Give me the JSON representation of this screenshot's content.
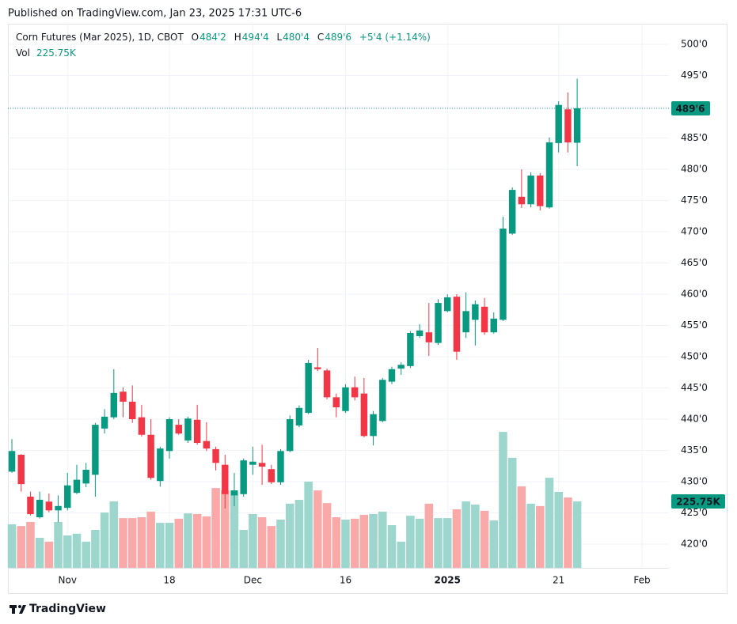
{
  "chart_data": {
    "type": "candlestick",
    "publish_note": "Published on TradingView.com, Jan 23, 2025 17:31 UTC-6",
    "title": "Corn Futures (Mar 2025), 1D, CBOT",
    "legend": {
      "open_label": "O",
      "open": "484'2",
      "high_label": "H",
      "high": "494'4",
      "low_label": "L",
      "low": "480'4",
      "close_label": "C",
      "close": "489'6",
      "change": "+5'4 (+1.14%)",
      "volume_label": "Vol",
      "volume": "225.75K"
    },
    "open": [
      431.6,
      434.3,
      427.6,
      424.3,
      426.8,
      425.4,
      425.8,
      428.2,
      429.7,
      431.1,
      438.5,
      440.3,
      444.4,
      442.8,
      440.3,
      437.5,
      430.1,
      434.9,
      439.1,
      436.6,
      439.9,
      436.5,
      435.2,
      432.7,
      427.8,
      428.0,
      432.7,
      433.0,
      432.0,
      429.9,
      434.9,
      439.0,
      441.0,
      448.3,
      447.8,
      443.5,
      441.3,
      445.1,
      444.1,
      437.3,
      439.7,
      446.0,
      448.1,
      448.5,
      453.3,
      453.9,
      452.2,
      457.3,
      459.6,
      453.9,
      455.9,
      458.0,
      453.9,
      455.9,
      469.7,
      475.6,
      474.4,
      479.0,
      473.9,
      484.2,
      489.6,
      484.25
    ],
    "high": [
      436.8,
      434.4,
      428.4,
      428.4,
      428.1,
      427.8,
      431.4,
      432.7,
      433.0,
      439.4,
      441.6,
      448.0,
      445.1,
      445.4,
      442.3,
      440.0,
      435.6,
      440.3,
      440.0,
      440.4,
      442.3,
      439.5,
      435.6,
      434.3,
      431.4,
      433.7,
      435.6,
      435.9,
      432.7,
      435.2,
      440.6,
      442.2,
      449.5,
      451.4,
      448.1,
      444.1,
      445.6,
      446.8,
      446.6,
      441.3,
      446.6,
      448.4,
      449.1,
      454.1,
      455.2,
      458.6,
      459.2,
      460.0,
      460.0,
      460.3,
      459.0,
      459.4,
      457.1,
      472.4,
      477.1,
      480.0,
      479.5,
      479.4,
      485.1,
      490.9,
      492.3,
      494.5
    ],
    "low": [
      431.4,
      428.4,
      424.6,
      424.1,
      425.1,
      423.5,
      425.4,
      428.0,
      429.1,
      427.6,
      437.7,
      440.0,
      440.3,
      439.4,
      437.2,
      430.3,
      429.2,
      433.7,
      437.5,
      436.2,
      435.9,
      434.9,
      431.8,
      425.7,
      426.1,
      427.6,
      431.1,
      429.5,
      429.6,
      429.5,
      434.7,
      438.7,
      440.8,
      447.7,
      443.2,
      440.3,
      441.0,
      443.0,
      437.1,
      435.8,
      439.5,
      445.6,
      447.1,
      448.2,
      453.0,
      450.1,
      451.9,
      457.1,
      449.5,
      453.0,
      451.8,
      453.5,
      453.7,
      455.7,
      469.5,
      473.8,
      473.9,
      473.4,
      473.7,
      482.7,
      482.7,
      480.5
    ],
    "close": [
      434.9,
      429.6,
      424.8,
      427.1,
      425.4,
      426.1,
      429.4,
      430.3,
      431.9,
      439.1,
      440.4,
      444.2,
      442.8,
      440.0,
      437.5,
      430.6,
      435.3,
      440.0,
      437.7,
      440.1,
      436.2,
      435.3,
      433.0,
      428.0,
      428.6,
      433.4,
      433.2,
      432.4,
      429.9,
      434.9,
      440.0,
      441.8,
      449.0,
      448.0,
      443.5,
      441.9,
      445.1,
      443.5,
      437.3,
      440.8,
      446.3,
      448.0,
      448.7,
      453.8,
      454.2,
      452.3,
      458.6,
      459.5,
      450.8,
      457.3,
      458.4,
      453.9,
      456.1,
      470.5,
      476.7,
      474.4,
      479.0,
      474.1,
      484.3,
      490.3,
      484.3,
      489.75
    ],
    "volume": [
      148,
      142,
      156,
      102,
      89,
      156,
      110,
      116,
      89,
      129,
      188,
      226,
      169,
      169,
      172,
      191,
      153,
      153,
      167,
      185,
      183,
      175,
      271,
      263,
      263,
      129,
      183,
      172,
      142,
      164,
      218,
      231,
      293,
      263,
      220,
      172,
      164,
      167,
      180,
      183,
      191,
      145,
      89,
      177,
      167,
      218,
      169,
      169,
      199,
      226,
      215,
      194,
      161,
      462,
      374,
      277,
      218,
      210,
      306,
      258,
      239,
      225.75
    ],
    "up_color": "#089981",
    "down_color": "#f23645",
    "volume_up_color": "#9cd6cd",
    "volume_down_color": "#f8a9a8",
    "ylim": [
      416.2,
      503.3
    ],
    "vlim": [
      0,
      1849
    ],
    "xlim": [
      -0.43,
      70.9
    ],
    "yticks": [
      {
        "value": 420,
        "label": "420'0"
      },
      {
        "value": 425,
        "label": "425'0"
      },
      {
        "value": 430,
        "label": "430'0"
      },
      {
        "value": 435,
        "label": "435'0"
      },
      {
        "value": 440,
        "label": "440'0"
      },
      {
        "value": 445,
        "label": "445'0"
      },
      {
        "value": 450,
        "label": "450'0"
      },
      {
        "value": 455,
        "label": "455'0"
      },
      {
        "value": 460,
        "label": "460'0"
      },
      {
        "value": 465,
        "label": "465'0"
      },
      {
        "value": 470,
        "label": "470'0"
      },
      {
        "value": 475,
        "label": "475'0"
      },
      {
        "value": 480,
        "label": "480'0"
      },
      {
        "value": 485,
        "label": "485'0"
      },
      {
        "value": 490,
        "label": "490'0"
      },
      {
        "value": 495,
        "label": "495'0"
      },
      {
        "value": 500,
        "label": "500'0"
      }
    ],
    "xticks": [
      {
        "value": 6,
        "label": "Nov"
      },
      {
        "value": 17,
        "label": "18"
      },
      {
        "value": 26,
        "label": "Dec"
      },
      {
        "value": 36,
        "label": "16"
      },
      {
        "value": 47,
        "label": "2025",
        "bold": true
      },
      {
        "value": 59,
        "label": "21"
      },
      {
        "value": 68,
        "label": "Feb"
      }
    ],
    "grid": true,
    "branding": "TradingView"
  }
}
